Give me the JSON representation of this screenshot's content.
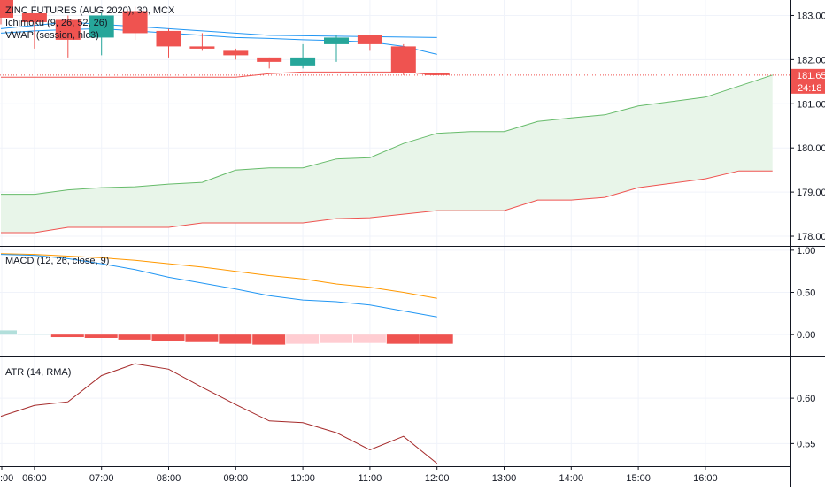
{
  "main_pane": {
    "legend": [
      "ZINC FUTURES (AUG 2020), 30, MCX",
      "Ichimoku (9, 26, 52, 26)",
      "VWAP (session, hlc3)"
    ],
    "price_badge": "181.65",
    "countdown_badge": "24:18",
    "y_ticks": [
      "183.00",
      "182.00",
      "181.00",
      "180.00",
      "179.00",
      "178.00"
    ]
  },
  "macd_pane": {
    "legend": "MACD (12, 26, close, 9)",
    "y_ticks": [
      "1.00",
      "0.50",
      "0.00"
    ]
  },
  "atr_pane": {
    "legend": "ATR (14, RMA)",
    "y_ticks": [
      "0.60",
      "0.55"
    ]
  },
  "x_ticks": [
    ":00",
    "06:00",
    "07:00",
    "08:00",
    "09:00",
    "10:00",
    "11:00",
    "12:00",
    "13:00",
    "14:00",
    "15:00",
    "16:00"
  ],
  "colors": {
    "up": "#26a69a",
    "down": "#ef5350",
    "cloud_fill": "#e8f5e9",
    "senkou_a": "#66bb6a",
    "senkou_b": "#ef5350",
    "macd": "#2196f3",
    "signal": "#ff9800",
    "hist_up_light": "#b2dfdb",
    "hist_down_light": "#ffcdd2",
    "atr": "#a52a2a",
    "vwap": "#2196f3",
    "grid": "#f0f3fa"
  },
  "chart_data": [
    {
      "type": "candlestick",
      "pane": "main",
      "title": "ZINC FUTURES (AUG 2020), 30, MCX",
      "ylim": [
        177.8,
        183.35
      ],
      "x_ticks": [
        "06:00",
        "07:00",
        "08:00",
        "09:00",
        "10:00",
        "11:00",
        "12:00",
        "13:00",
        "14:00",
        "15:00",
        "16:00"
      ],
      "candles": [
        {
          "t": "05:30",
          "o": 183.35,
          "h": 183.4,
          "l": 182.8,
          "c": 182.95
        },
        {
          "t": "06:00",
          "o": 183.05,
          "h": 183.05,
          "l": 182.25,
          "c": 182.85
        },
        {
          "t": "06:30",
          "o": 182.9,
          "h": 183.0,
          "l": 182.05,
          "c": 182.45
        },
        {
          "t": "07:00",
          "o": 182.5,
          "h": 183.05,
          "l": 182.1,
          "c": 183.0
        },
        {
          "t": "07:30",
          "o": 183.1,
          "h": 183.2,
          "l": 182.45,
          "c": 182.6
        },
        {
          "t": "08:00",
          "o": 182.65,
          "h": 182.7,
          "l": 182.05,
          "c": 182.3
        },
        {
          "t": "08:30",
          "o": 182.3,
          "h": 182.6,
          "l": 182.2,
          "c": 182.25
        },
        {
          "t": "09:00",
          "o": 182.2,
          "h": 182.25,
          "l": 182.0,
          "c": 182.1
        },
        {
          "t": "09:30",
          "o": 182.05,
          "h": 182.05,
          "l": 181.8,
          "c": 181.95
        },
        {
          "t": "10:00",
          "o": 181.85,
          "h": 182.35,
          "l": 181.8,
          "c": 182.05
        },
        {
          "t": "10:30",
          "o": 182.35,
          "h": 182.55,
          "l": 181.95,
          "c": 182.5
        },
        {
          "t": "11:00",
          "o": 182.55,
          "h": 182.55,
          "l": 182.2,
          "c": 182.35
        },
        {
          "t": "11:30",
          "o": 182.3,
          "h": 182.35,
          "l": 181.65,
          "c": 181.7
        },
        {
          "t": "12:00",
          "o": 181.7,
          "h": 181.7,
          "l": 181.65,
          "c": 181.65
        }
      ],
      "last_price": 181.65,
      "ichimoku_senkou_a": [
        {
          "t": "05:30",
          "v": 178.95
        },
        {
          "t": "06:00",
          "v": 178.95
        },
        {
          "t": "06:30",
          "v": 179.05
        },
        {
          "t": "07:00",
          "v": 179.1
        },
        {
          "t": "07:30",
          "v": 179.12
        },
        {
          "t": "08:00",
          "v": 179.18
        },
        {
          "t": "08:30",
          "v": 179.22
        },
        {
          "t": "09:00",
          "v": 179.5
        },
        {
          "t": "09:30",
          "v": 179.55
        },
        {
          "t": "10:00",
          "v": 179.55
        },
        {
          "t": "10:30",
          "v": 179.75
        },
        {
          "t": "11:00",
          "v": 179.78
        },
        {
          "t": "11:30",
          "v": 180.1
        },
        {
          "t": "12:00",
          "v": 180.33
        },
        {
          "t": "12:30",
          "v": 180.37
        },
        {
          "t": "13:00",
          "v": 180.37
        },
        {
          "t": "13:30",
          "v": 180.6
        },
        {
          "t": "14:00",
          "v": 180.68
        },
        {
          "t": "14:30",
          "v": 180.75
        },
        {
          "t": "15:00",
          "v": 180.95
        },
        {
          "t": "15:30",
          "v": 181.05
        },
        {
          "t": "16:00",
          "v": 181.15
        },
        {
          "t": "16:30",
          "v": 181.4
        },
        {
          "t": "17:00",
          "v": 181.65
        }
      ],
      "ichimoku_senkou_b": [
        {
          "t": "05:30",
          "v": 178.08
        },
        {
          "t": "06:00",
          "v": 178.08
        },
        {
          "t": "06:30",
          "v": 178.2
        },
        {
          "t": "07:00",
          "v": 178.2
        },
        {
          "t": "07:30",
          "v": 178.2
        },
        {
          "t": "08:00",
          "v": 178.2
        },
        {
          "t": "08:30",
          "v": 178.3
        },
        {
          "t": "09:00",
          "v": 178.3
        },
        {
          "t": "09:30",
          "v": 178.3
        },
        {
          "t": "10:00",
          "v": 178.3
        },
        {
          "t": "10:30",
          "v": 178.4
        },
        {
          "t": "11:00",
          "v": 178.42
        },
        {
          "t": "11:30",
          "v": 178.5
        },
        {
          "t": "12:00",
          "v": 178.58
        },
        {
          "t": "12:30",
          "v": 178.58
        },
        {
          "t": "13:00",
          "v": 178.58
        },
        {
          "t": "13:30",
          "v": 178.82
        },
        {
          "t": "14:00",
          "v": 178.82
        },
        {
          "t": "14:30",
          "v": 178.88
        },
        {
          "t": "15:00",
          "v": 179.1
        },
        {
          "t": "15:30",
          "v": 179.2
        },
        {
          "t": "16:00",
          "v": 179.3
        },
        {
          "t": "16:30",
          "v": 179.48
        },
        {
          "t": "17:00",
          "v": 179.48
        }
      ],
      "ichimoku_upper_line": [
        {
          "t": "05:30",
          "v": 182.7
        },
        {
          "t": "06:30",
          "v": 182.85
        },
        {
          "t": "07:30",
          "v": 182.75
        },
        {
          "t": "08:30",
          "v": 182.65
        },
        {
          "t": "09:30",
          "v": 182.55
        },
        {
          "t": "11:00",
          "v": 182.52
        },
        {
          "t": "12:00",
          "v": 182.5
        }
      ],
      "ichimoku_lower_line": [
        {
          "t": "05:30",
          "v": 181.6
        },
        {
          "t": "09:00",
          "v": 181.6
        },
        {
          "t": "09:30",
          "v": 181.68
        },
        {
          "t": "10:00",
          "v": 181.72
        },
        {
          "t": "11:30",
          "v": 181.72
        },
        {
          "t": "12:00",
          "v": 181.65
        }
      ],
      "vwap": [
        {
          "t": "05:30",
          "v": 182.6
        },
        {
          "t": "06:00",
          "v": 182.65
        },
        {
          "t": "06:30",
          "v": 182.68
        },
        {
          "t": "07:00",
          "v": 182.7
        },
        {
          "t": "07:30",
          "v": 182.65
        },
        {
          "t": "08:00",
          "v": 182.6
        },
        {
          "t": "08:30",
          "v": 182.55
        },
        {
          "t": "09:00",
          "v": 182.5
        },
        {
          "t": "09:30",
          "v": 182.48
        },
        {
          "t": "10:00",
          "v": 182.45
        },
        {
          "t": "10:30",
          "v": 182.43
        },
        {
          "t": "11:00",
          "v": 182.4
        },
        {
          "t": "11:30",
          "v": 182.3
        },
        {
          "t": "12:00",
          "v": 182.12
        }
      ]
    },
    {
      "type": "line+histogram",
      "pane": "macd",
      "title": "MACD (12, 26, close, 9)",
      "ylim": [
        -0.25,
        1.03
      ],
      "macd": [
        {
          "t": "05:30",
          "v": 0.95
        },
        {
          "t": "06:00",
          "v": 0.94
        },
        {
          "t": "06:30",
          "v": 0.9
        },
        {
          "t": "07:00",
          "v": 0.84
        },
        {
          "t": "07:30",
          "v": 0.77
        },
        {
          "t": "08:00",
          "v": 0.68
        },
        {
          "t": "08:30",
          "v": 0.61
        },
        {
          "t": "09:00",
          "v": 0.54
        },
        {
          "t": "09:30",
          "v": 0.46
        },
        {
          "t": "10:00",
          "v": 0.41
        },
        {
          "t": "10:30",
          "v": 0.39
        },
        {
          "t": "11:00",
          "v": 0.35
        },
        {
          "t": "11:30",
          "v": 0.28
        },
        {
          "t": "12:00",
          "v": 0.21
        }
      ],
      "signal": [
        {
          "t": "05:30",
          "v": 0.96
        },
        {
          "t": "06:00",
          "v": 0.95
        },
        {
          "t": "06:30",
          "v": 0.93
        },
        {
          "t": "07:00",
          "v": 0.91
        },
        {
          "t": "07:30",
          "v": 0.88
        },
        {
          "t": "08:00",
          "v": 0.84
        },
        {
          "t": "08:30",
          "v": 0.8
        },
        {
          "t": "09:00",
          "v": 0.75
        },
        {
          "t": "09:30",
          "v": 0.7
        },
        {
          "t": "10:00",
          "v": 0.66
        },
        {
          "t": "10:30",
          "v": 0.6
        },
        {
          "t": "11:00",
          "v": 0.56
        },
        {
          "t": "11:30",
          "v": 0.5
        },
        {
          "t": "12:00",
          "v": 0.43
        }
      ],
      "histogram": [
        {
          "t": "05:30",
          "v": 0.05,
          "shade": "up_light"
        },
        {
          "t": "06:00",
          "v": 0.01,
          "shade": "up_light"
        },
        {
          "t": "06:30",
          "v": -0.03,
          "shade": "down"
        },
        {
          "t": "07:00",
          "v": -0.04,
          "shade": "down"
        },
        {
          "t": "07:30",
          "v": -0.06,
          "shade": "down"
        },
        {
          "t": "08:00",
          "v": -0.08,
          "shade": "down"
        },
        {
          "t": "08:30",
          "v": -0.09,
          "shade": "down"
        },
        {
          "t": "09:00",
          "v": -0.11,
          "shade": "down"
        },
        {
          "t": "09:30",
          "v": -0.12,
          "shade": "down"
        },
        {
          "t": "10:00",
          "v": -0.11,
          "shade": "down_light"
        },
        {
          "t": "10:30",
          "v": -0.1,
          "shade": "down_light"
        },
        {
          "t": "11:00",
          "v": -0.1,
          "shade": "down_light"
        },
        {
          "t": "11:30",
          "v": -0.11,
          "shade": "down"
        },
        {
          "t": "12:00",
          "v": -0.11,
          "shade": "down"
        }
      ]
    },
    {
      "type": "line",
      "pane": "atr",
      "title": "ATR (14, RMA)",
      "ylim": [
        0.525,
        0.645
      ],
      "atr": [
        {
          "t": "05:30",
          "v": 0.58
        },
        {
          "t": "06:00",
          "v": 0.592
        },
        {
          "t": "06:30",
          "v": 0.596
        },
        {
          "t": "07:00",
          "v": 0.625
        },
        {
          "t": "07:30",
          "v": 0.638
        },
        {
          "t": "08:00",
          "v": 0.632
        },
        {
          "t": "08:30",
          "v": 0.612
        },
        {
          "t": "09:00",
          "v": 0.593
        },
        {
          "t": "09:30",
          "v": 0.575
        },
        {
          "t": "10:00",
          "v": 0.573
        },
        {
          "t": "10:30",
          "v": 0.562
        },
        {
          "t": "11:00",
          "v": 0.543
        },
        {
          "t": "11:30",
          "v": 0.558
        },
        {
          "t": "12:00",
          "v": 0.528
        }
      ]
    }
  ]
}
